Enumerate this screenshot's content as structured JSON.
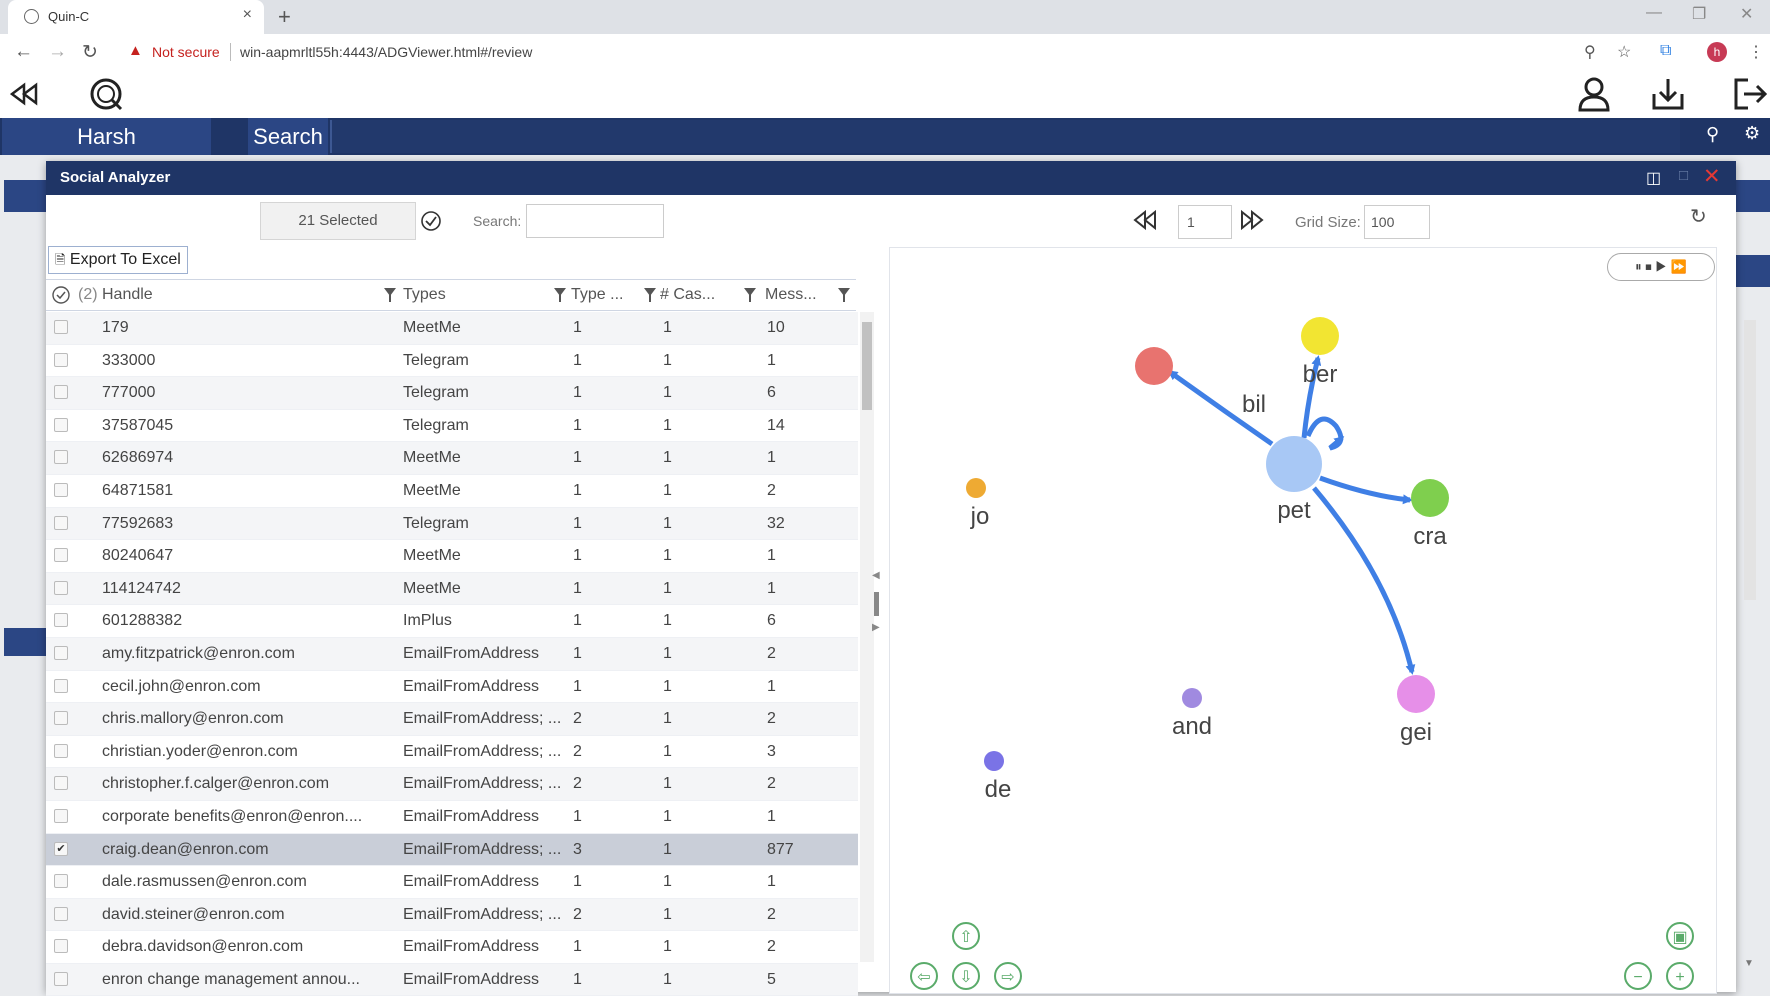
{
  "browser": {
    "tab_title": "Quin-C",
    "tab_close": "×",
    "new_tab": "+",
    "security_label": "Not secure",
    "url": "win-aapmrltl55h:4443/ADGViewer.html#/review",
    "profile_initial": "h"
  },
  "nav": {
    "user_tab": "Harsh",
    "search_tab": "Search"
  },
  "modal": {
    "title": "Social Analyzer",
    "selected_count": "21 Selected",
    "search_label": "Search:",
    "export_label": "Export To Excel",
    "header_check_count": "(2)",
    "columns": [
      "Handle",
      "Types",
      "Type ...",
      "# Cas...",
      "Mess..."
    ],
    "rows": [
      {
        "handle": "179",
        "types": "MeetMe",
        "type_count": "1",
        "cases": "1",
        "messages": "10",
        "checked": false
      },
      {
        "handle": "333000",
        "types": "Telegram",
        "type_count": "1",
        "cases": "1",
        "messages": "1",
        "checked": false
      },
      {
        "handle": "777000",
        "types": "Telegram",
        "type_count": "1",
        "cases": "1",
        "messages": "6",
        "checked": false
      },
      {
        "handle": "37587045",
        "types": "Telegram",
        "type_count": "1",
        "cases": "1",
        "messages": "14",
        "checked": false
      },
      {
        "handle": "62686974",
        "types": "MeetMe",
        "type_count": "1",
        "cases": "1",
        "messages": "1",
        "checked": false
      },
      {
        "handle": "64871581",
        "types": "MeetMe",
        "type_count": "1",
        "cases": "1",
        "messages": "2",
        "checked": false
      },
      {
        "handle": "77592683",
        "types": "Telegram",
        "type_count": "1",
        "cases": "1",
        "messages": "32",
        "checked": false
      },
      {
        "handle": "80240647",
        "types": "MeetMe",
        "type_count": "1",
        "cases": "1",
        "messages": "1",
        "checked": false
      },
      {
        "handle": "114124742",
        "types": "MeetMe",
        "type_count": "1",
        "cases": "1",
        "messages": "1",
        "checked": false
      },
      {
        "handle": "601288382",
        "types": "ImPlus",
        "type_count": "1",
        "cases": "1",
        "messages": "6",
        "checked": false
      },
      {
        "handle": "amy.fitzpatrick@enron.com",
        "types": "EmailFromAddress",
        "type_count": "1",
        "cases": "1",
        "messages": "2",
        "checked": false
      },
      {
        "handle": "cecil.john@enron.com",
        "types": "EmailFromAddress",
        "type_count": "1",
        "cases": "1",
        "messages": "1",
        "checked": false
      },
      {
        "handle": "chris.mallory@enron.com",
        "types": "EmailFromAddress; ...",
        "type_count": "2",
        "cases": "1",
        "messages": "2",
        "checked": false
      },
      {
        "handle": "christian.yoder@enron.com",
        "types": "EmailFromAddress; ...",
        "type_count": "2",
        "cases": "1",
        "messages": "3",
        "checked": false
      },
      {
        "handle": "christopher.f.calger@enron.com",
        "types": "EmailFromAddress; ...",
        "type_count": "2",
        "cases": "1",
        "messages": "2",
        "checked": false
      },
      {
        "handle": "corporate benefits@enron@enron....",
        "types": "EmailFromAddress",
        "type_count": "1",
        "cases": "1",
        "messages": "1",
        "checked": false
      },
      {
        "handle": "craig.dean@enron.com",
        "types": "EmailFromAddress; ...",
        "type_count": "3",
        "cases": "1",
        "messages": "877",
        "checked": true
      },
      {
        "handle": "dale.rasmussen@enron.com",
        "types": "EmailFromAddress",
        "type_count": "1",
        "cases": "1",
        "messages": "1",
        "checked": false
      },
      {
        "handle": "david.steiner@enron.com",
        "types": "EmailFromAddress; ...",
        "type_count": "2",
        "cases": "1",
        "messages": "2",
        "checked": false
      },
      {
        "handle": "debra.davidson@enron.com",
        "types": "EmailFromAddress",
        "type_count": "1",
        "cases": "1",
        "messages": "2",
        "checked": false
      },
      {
        "handle": "enron change management annou...",
        "types": "EmailFromAddress",
        "type_count": "1",
        "cases": "1",
        "messages": "5",
        "checked": false
      }
    ]
  },
  "graph": {
    "page": "1",
    "grid_size_label": "Grid Size:",
    "grid_size": "100",
    "nodes": [
      {
        "label": "bil",
        "color": "#e8736f"
      },
      {
        "label": "ber",
        "color": "#f2e532"
      },
      {
        "label": "pet",
        "color": "#a8c8f5"
      },
      {
        "label": "cra",
        "color": "#7fcf4e"
      },
      {
        "label": "gei",
        "color": "#e68fe8"
      },
      {
        "label": "jo",
        "color": "#eeaa33"
      },
      {
        "label": "and",
        "color": "#a08ae0"
      },
      {
        "label": "de",
        "color": "#7a73e6"
      }
    ],
    "edge_color": "#3f7fe5"
  }
}
